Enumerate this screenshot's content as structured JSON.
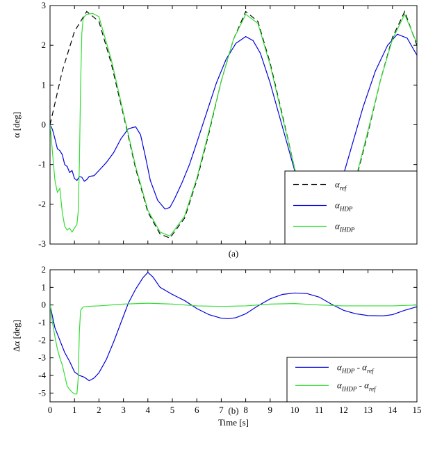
{
  "chart_data": [
    {
      "type": "line",
      "id": "a",
      "caption": "(a)",
      "xlabel": "",
      "ylabel": "α [deg]",
      "xlim": [
        0,
        15
      ],
      "ylim": [
        -3,
        3
      ],
      "yticks": [
        -3,
        -2,
        -1,
        0,
        1,
        2,
        3
      ],
      "xticks": [
        0,
        1,
        2,
        3,
        4,
        5,
        6,
        7,
        8,
        9,
        10,
        11,
        12,
        13,
        14,
        15
      ],
      "show_xtick_labels": false,
      "grid": false,
      "legend_position": "bottom-right",
      "series": [
        {
          "name": "α",
          "subscript": "ref",
          "color": "#000000",
          "dash": "8,5",
          "x": [
            0,
            0.5,
            1.0,
            1.5,
            2.0,
            2.5,
            3.0,
            3.5,
            4.0,
            4.5,
            4.9,
            5.5,
            6.0,
            6.5,
            7.0,
            7.5,
            8.0,
            8.5,
            9.0,
            9.5,
            10.0,
            10.5,
            11.0,
            11.5,
            12.0,
            12.5,
            13.0,
            13.5,
            14.0,
            14.5,
            15.0
          ],
          "y": [
            0,
            1.35,
            2.35,
            2.85,
            2.6,
            1.55,
            0.25,
            -1.1,
            -2.2,
            -2.75,
            -2.85,
            -2.35,
            -1.4,
            -0.2,
            1.1,
            2.15,
            2.85,
            2.6,
            1.55,
            0.25,
            -1.1,
            -2.2,
            -2.75,
            -2.85,
            -2.35,
            -1.4,
            -0.2,
            1.1,
            2.2,
            2.85,
            2.0
          ]
        },
        {
          "name": "α",
          "subscript": "HDP",
          "color": "#0000dd",
          "dash": "",
          "x": [
            0,
            0.1,
            0.2,
            0.3,
            0.4,
            0.5,
            0.6,
            0.7,
            0.8,
            0.9,
            1.0,
            1.1,
            1.2,
            1.3,
            1.4,
            1.5,
            1.6,
            1.8,
            2.0,
            2.3,
            2.6,
            2.9,
            3.2,
            3.5,
            3.7,
            3.9,
            4.1,
            4.4,
            4.7,
            4.9,
            5.1,
            5.4,
            5.7,
            6.0,
            6.4,
            6.8,
            7.2,
            7.6,
            8.0,
            8.3,
            8.6,
            9.0,
            9.5,
            10.0,
            10.5,
            10.9,
            11.2,
            11.6,
            12.0,
            12.4,
            12.8,
            13.3,
            13.8,
            14.2,
            14.6,
            15.0
          ],
          "y": [
            0,
            -0.12,
            -0.35,
            -0.6,
            -0.65,
            -0.75,
            -1.0,
            -1.05,
            -1.2,
            -1.15,
            -1.35,
            -1.4,
            -1.3,
            -1.32,
            -1.42,
            -1.38,
            -1.3,
            -1.28,
            -1.15,
            -0.95,
            -0.7,
            -0.35,
            -0.1,
            -0.05,
            -0.25,
            -0.8,
            -1.4,
            -1.9,
            -2.12,
            -2.08,
            -1.85,
            -1.45,
            -1.0,
            -0.45,
            0.3,
            1.05,
            1.65,
            2.05,
            2.22,
            2.12,
            1.8,
            1.05,
            -0.05,
            -1.15,
            -1.95,
            -2.25,
            -2.22,
            -1.9,
            -1.25,
            -0.4,
            0.45,
            1.35,
            2.0,
            2.28,
            2.18,
            1.75
          ]
        },
        {
          "name": "α",
          "subscript": "IHDP",
          "color": "#33dd33",
          "dash": "",
          "x": [
            0,
            0.05,
            0.1,
            0.2,
            0.3,
            0.4,
            0.5,
            0.6,
            0.7,
            0.8,
            0.9,
            1.0,
            1.1,
            1.15,
            1.2,
            1.25,
            1.3,
            1.35,
            1.4,
            1.5,
            1.75,
            2.0,
            2.5,
            3.0,
            3.5,
            4.0,
            4.5,
            4.9,
            5.5,
            6.0,
            6.5,
            7.0,
            7.5,
            8.0,
            8.5,
            9.0,
            9.5,
            10.0,
            10.5,
            11.0,
            11.5,
            12.0,
            12.5,
            13.0,
            13.5,
            14.0,
            14.5,
            15.0
          ],
          "y": [
            0,
            -0.3,
            -0.7,
            -1.4,
            -1.7,
            -1.6,
            -2.2,
            -2.55,
            -2.65,
            -2.6,
            -2.7,
            -2.6,
            -2.5,
            -2.2,
            -1.0,
            1.0,
            2.3,
            2.65,
            2.72,
            2.78,
            2.8,
            2.72,
            1.65,
            0.3,
            -1.05,
            -2.15,
            -2.7,
            -2.8,
            -2.3,
            -1.35,
            -0.15,
            1.1,
            2.15,
            2.78,
            2.55,
            1.5,
            0.2,
            -1.1,
            -2.15,
            -2.7,
            -2.8,
            -2.3,
            -1.35,
            -0.15,
            1.1,
            2.15,
            2.78,
            2.05
          ]
        }
      ]
    },
    {
      "type": "line",
      "id": "b",
      "caption": "(b)",
      "xlabel": "Time [s]",
      "ylabel": "Δα [deg]",
      "xlim": [
        0,
        15
      ],
      "ylim": [
        -5.5,
        2
      ],
      "yticks": [
        -5,
        -4,
        -3,
        -2,
        -1,
        0,
        1,
        2
      ],
      "xticks": [
        0,
        1,
        2,
        3,
        4,
        5,
        6,
        7,
        8,
        9,
        10,
        11,
        12,
        13,
        14,
        15
      ],
      "show_xtick_labels": true,
      "grid": false,
      "legend_position": "bottom-right",
      "series": [
        {
          "name": "α",
          "subscript": "HDP",
          "suffix": " - α",
          "suffix_subscript": "ref",
          "color": "#0000dd",
          "dash": "",
          "x": [
            0,
            0.2,
            0.4,
            0.6,
            0.8,
            1.0,
            1.2,
            1.4,
            1.6,
            1.8,
            2.0,
            2.3,
            2.6,
            2.9,
            3.2,
            3.5,
            3.8,
            4.0,
            4.2,
            4.5,
            5.0,
            5.5,
            6.0,
            6.5,
            7.0,
            7.3,
            7.6,
            8.0,
            8.5,
            9.0,
            9.5,
            10.0,
            10.5,
            11.0,
            11.5,
            12.0,
            12.5,
            13.0,
            13.6,
            14.0,
            14.5,
            15.0
          ],
          "y": [
            0,
            -1.3,
            -2.0,
            -2.7,
            -3.2,
            -3.8,
            -4.0,
            -4.1,
            -4.3,
            -4.15,
            -3.85,
            -3.1,
            -2.1,
            -1.0,
            0.1,
            0.9,
            1.55,
            1.85,
            1.6,
            1.0,
            0.6,
            0.25,
            -0.2,
            -0.55,
            -0.75,
            -0.78,
            -0.72,
            -0.5,
            -0.05,
            0.35,
            0.6,
            0.68,
            0.65,
            0.45,
            0.05,
            -0.3,
            -0.5,
            -0.6,
            -0.62,
            -0.55,
            -0.3,
            -0.1
          ]
        },
        {
          "name": "α",
          "subscript": "IHDP",
          "suffix": " - α",
          "suffix_subscript": "ref",
          "color": "#33dd33",
          "dash": "",
          "x": [
            0,
            0.1,
            0.2,
            0.3,
            0.4,
            0.5,
            0.6,
            0.7,
            0.8,
            0.9,
            1.0,
            1.1,
            1.15,
            1.2,
            1.25,
            1.35,
            1.5,
            2.0,
            3.0,
            4.0,
            5.0,
            6.0,
            7.0,
            8.0,
            9.0,
            10.0,
            11.0,
            12.0,
            13.0,
            14.0,
            15.0
          ],
          "y": [
            0,
            -1.0,
            -1.8,
            -2.5,
            -3.0,
            -3.4,
            -4.0,
            -4.6,
            -4.8,
            -4.95,
            -5.05,
            -5.05,
            -4.2,
            -1.5,
            -0.3,
            -0.12,
            -0.08,
            -0.05,
            0.05,
            0.1,
            0.05,
            -0.05,
            -0.08,
            -0.05,
            0.05,
            0.08,
            0.0,
            -0.05,
            -0.05,
            -0.05,
            0.0
          ]
        }
      ]
    }
  ]
}
